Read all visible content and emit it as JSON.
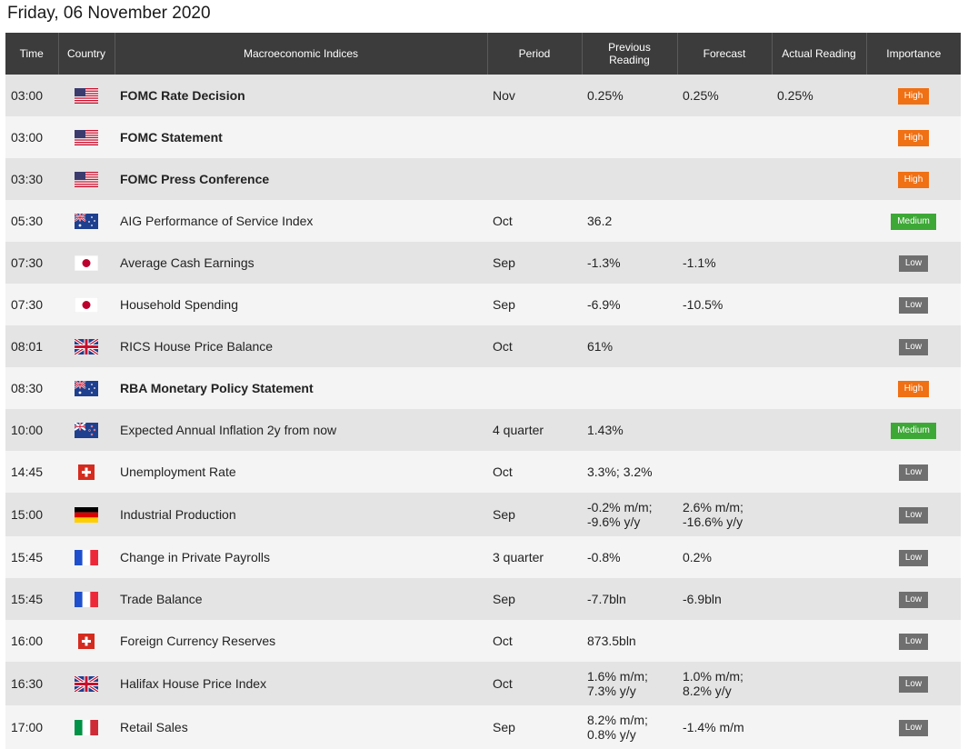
{
  "title": "Friday, 06 November 2020",
  "columns": {
    "time": "Time",
    "country": "Country",
    "index": "Macroeconomic Indices",
    "period": "Period",
    "previous": "Previous Reading",
    "forecast": "Forecast",
    "actual": "Actual Reading",
    "importance": "Importance"
  },
  "importance_colors": {
    "High": "#f07014",
    "Medium": "#3ea837",
    "Low": "#6f6f6f"
  },
  "rows": [
    {
      "time": "03:00",
      "country": "us-flag-icon",
      "index": "FOMC Rate Decision",
      "bold": true,
      "period": "Nov",
      "previous": "0.25%",
      "forecast": "0.25%",
      "actual": "0.25%",
      "importance": "High"
    },
    {
      "time": "03:00",
      "country": "us-flag-icon",
      "index": "FOMC Statement",
      "bold": true,
      "period": "",
      "previous": "",
      "forecast": "",
      "actual": "",
      "importance": "High"
    },
    {
      "time": "03:30",
      "country": "us-flag-icon",
      "index": "FOMC Press Conference",
      "bold": true,
      "period": "",
      "previous": "",
      "forecast": "",
      "actual": "",
      "importance": "High"
    },
    {
      "time": "05:30",
      "country": "au-flag-icon",
      "index": "AIG Performance of Service Index",
      "bold": false,
      "period": "Oct",
      "previous": "36.2",
      "forecast": "",
      "actual": "",
      "importance": "Medium"
    },
    {
      "time": "07:30",
      "country": "jp-flag-icon",
      "index": "Average Cash Earnings",
      "bold": false,
      "period": "Sep",
      "previous": "-1.3%",
      "forecast": "-1.1%",
      "actual": "",
      "importance": "Low"
    },
    {
      "time": "07:30",
      "country": "jp-flag-icon",
      "index": "Household Spending",
      "bold": false,
      "period": "Sep",
      "previous": "-6.9%",
      "forecast": "-10.5%",
      "actual": "",
      "importance": "Low"
    },
    {
      "time": "08:01",
      "country": "uk-flag-icon",
      "index": "RICS House Price Balance",
      "bold": false,
      "period": "Oct",
      "previous": "61%",
      "forecast": "",
      "actual": "",
      "importance": "Low"
    },
    {
      "time": "08:30",
      "country": "au-flag-icon",
      "index": "RBA Monetary Policy Statement",
      "bold": true,
      "period": "",
      "previous": "",
      "forecast": "",
      "actual": "",
      "importance": "High"
    },
    {
      "time": "10:00",
      "country": "nz-flag-icon",
      "index": "Expected Annual Inflation 2y from now",
      "bold": false,
      "period": "4 quarter",
      "previous": "1.43%",
      "forecast": "",
      "actual": "",
      "importance": "Medium"
    },
    {
      "time": "14:45",
      "country": "ch-flag-icon",
      "index": "Unemployment Rate",
      "bold": false,
      "period": "Oct",
      "previous": "3.3%; 3.2%",
      "forecast": "",
      "actual": "",
      "importance": "Low"
    },
    {
      "time": "15:00",
      "country": "de-flag-icon",
      "index": "Industrial Production",
      "bold": false,
      "period": "Sep",
      "previous": "-0.2% m/m; -9.6% y/y",
      "forecast": "2.6% m/m; -16.6% y/y",
      "actual": "",
      "importance": "Low"
    },
    {
      "time": "15:45",
      "country": "fr-flag-icon",
      "index": "Change in Private Payrolls",
      "bold": false,
      "period": "3 quarter",
      "previous": "-0.8%",
      "forecast": "0.2%",
      "actual": "",
      "importance": "Low"
    },
    {
      "time": "15:45",
      "country": "fr-flag-icon",
      "index": "Trade Balance",
      "bold": false,
      "period": "Sep",
      "previous": "-7.7bln",
      "forecast": "-6.9bln",
      "actual": "",
      "importance": "Low"
    },
    {
      "time": "16:00",
      "country": "ch-flag-icon",
      "index": "Foreign Currency Reserves",
      "bold": false,
      "period": "Oct",
      "previous": "873.5bln",
      "forecast": "",
      "actual": "",
      "importance": "Low"
    },
    {
      "time": "16:30",
      "country": "uk-flag-icon",
      "index": "Halifax House Price Index",
      "bold": false,
      "period": "Oct",
      "previous": "1.6% m/m; 7.3% y/y",
      "forecast": "1.0% m/m; 8.2% y/y",
      "actual": "",
      "importance": "Low"
    },
    {
      "time": "17:00",
      "country": "it-flag-icon",
      "index": "Retail Sales",
      "bold": false,
      "period": "Sep",
      "previous": "8.2% m/m; 0.8% y/y",
      "forecast": "-1.4% m/m",
      "actual": "",
      "importance": "Low"
    }
  ]
}
